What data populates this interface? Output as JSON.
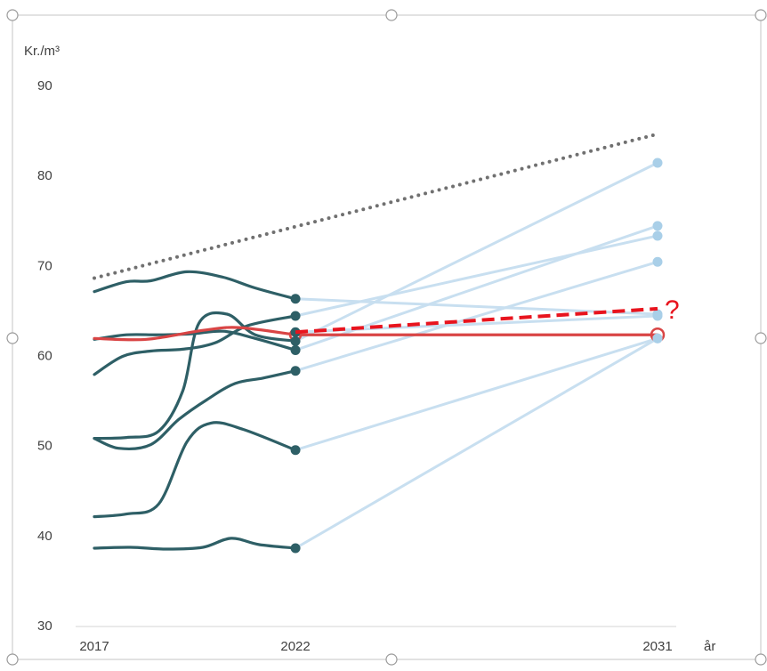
{
  "chart_data": {
    "type": "line",
    "ylabel": "Kr./m³",
    "xlabel": "år",
    "x_ticks": [
      "2017",
      "2022",
      "2031"
    ],
    "y_ticks": [
      "30",
      "40",
      "50",
      "60",
      "70",
      "80",
      "90"
    ],
    "ylim": [
      30,
      90
    ],
    "xlim": [
      2017,
      2031
    ],
    "grid": false,
    "annotation": "?",
    "colors": {
      "history": "#2e5f66",
      "projection": "#c8dff0",
      "projection_marker": "#a9cfe8",
      "highlight": "#d94545",
      "trend_dashed": "#e8141e",
      "upper_dotted": "#707070",
      "axis": "#c8c8c8",
      "text": "#404040"
    },
    "series": [
      {
        "history": [
          [
            2017,
            67.0
          ],
          [
            2017.8,
            68.1
          ],
          [
            2018.4,
            68.2
          ],
          [
            2019.3,
            69.2
          ],
          [
            2020.2,
            68.6
          ],
          [
            2021.0,
            67.4
          ],
          [
            2022,
            66.2
          ]
        ],
        "projection": [
          [
            2022,
            66.2
          ],
          [
            2031,
            64.5
          ]
        ]
      },
      {
        "history": [
          [
            2017,
            61.7
          ],
          [
            2017.8,
            62.2
          ],
          [
            2018.6,
            62.2
          ],
          [
            2019.4,
            62.3
          ],
          [
            2020.2,
            62.6
          ],
          [
            2021.0,
            61.8
          ],
          [
            2022,
            60.5
          ]
        ],
        "projection": [
          [
            2022,
            60.5
          ],
          [
            2031,
            74.3
          ]
        ]
      },
      {
        "history": [
          [
            2017,
            57.8
          ],
          [
            2017.7,
            59.8
          ],
          [
            2018.4,
            60.4
          ],
          [
            2019.2,
            60.6
          ],
          [
            2020.0,
            61.3
          ],
          [
            2020.8,
            63.2
          ],
          [
            2022,
            64.3
          ]
        ],
        "projection": [
          [
            2022,
            64.3
          ],
          [
            2031,
            73.2
          ]
        ]
      },
      {
        "history": [
          [
            2017,
            50.7
          ],
          [
            2017.8,
            50.8
          ],
          [
            2018.6,
            51.5
          ],
          [
            2019.2,
            56.0
          ],
          [
            2019.6,
            63.5
          ],
          [
            2020.3,
            64.5
          ],
          [
            2021.0,
            62.2
          ],
          [
            2022,
            61.5
          ]
        ],
        "projection": [
          [
            2022,
            61.5
          ],
          [
            2031,
            81.3
          ]
        ]
      },
      {
        "history": [
          [
            2017,
            50.7
          ],
          [
            2017.6,
            49.6
          ],
          [
            2018.4,
            50.0
          ],
          [
            2019.1,
            52.8
          ],
          [
            2019.8,
            55.0
          ],
          [
            2020.5,
            56.8
          ],
          [
            2021.2,
            57.4
          ],
          [
            2022,
            58.2
          ]
        ],
        "projection": [
          [
            2022,
            58.2
          ],
          [
            2031,
            70.3
          ]
        ]
      },
      {
        "history": [
          [
            2017,
            42.0
          ],
          [
            2017.8,
            42.3
          ],
          [
            2018.6,
            43.4
          ],
          [
            2019.3,
            50.3
          ],
          [
            2019.9,
            52.4
          ],
          [
            2020.7,
            51.7
          ],
          [
            2022,
            49.4
          ]
        ],
        "projection": [
          [
            2022,
            49.4
          ],
          [
            2031,
            61.8
          ]
        ]
      },
      {
        "history": [
          [
            2017,
            38.5
          ],
          [
            2017.9,
            38.6
          ],
          [
            2018.8,
            38.4
          ],
          [
            2019.7,
            38.6
          ],
          [
            2020.4,
            39.6
          ],
          [
            2021.1,
            38.9
          ],
          [
            2022,
            38.5
          ]
        ],
        "projection": [
          [
            2022,
            38.5
          ],
          [
            2031,
            61.8
          ]
        ]
      },
      {
        "history": [
          [
            2022,
            62.5
          ]
        ],
        "projection": [
          [
            2022,
            62.5
          ],
          [
            2031,
            64.3
          ]
        ]
      }
    ],
    "highlight_series": {
      "points": [
        [
          2017,
          61.8
        ],
        [
          2018.3,
          61.7
        ],
        [
          2019.7,
          62.7
        ],
        [
          2020.6,
          63.0
        ],
        [
          2022,
          62.2
        ],
        [
          2031,
          62.2
        ]
      ]
    },
    "dashed_trend": {
      "points": [
        [
          2022,
          62.5
        ],
        [
          2031,
          65.1
        ]
      ]
    },
    "dotted_upper": {
      "points": [
        [
          2017,
          68.5
        ],
        [
          2031,
          84.5
        ]
      ]
    }
  }
}
